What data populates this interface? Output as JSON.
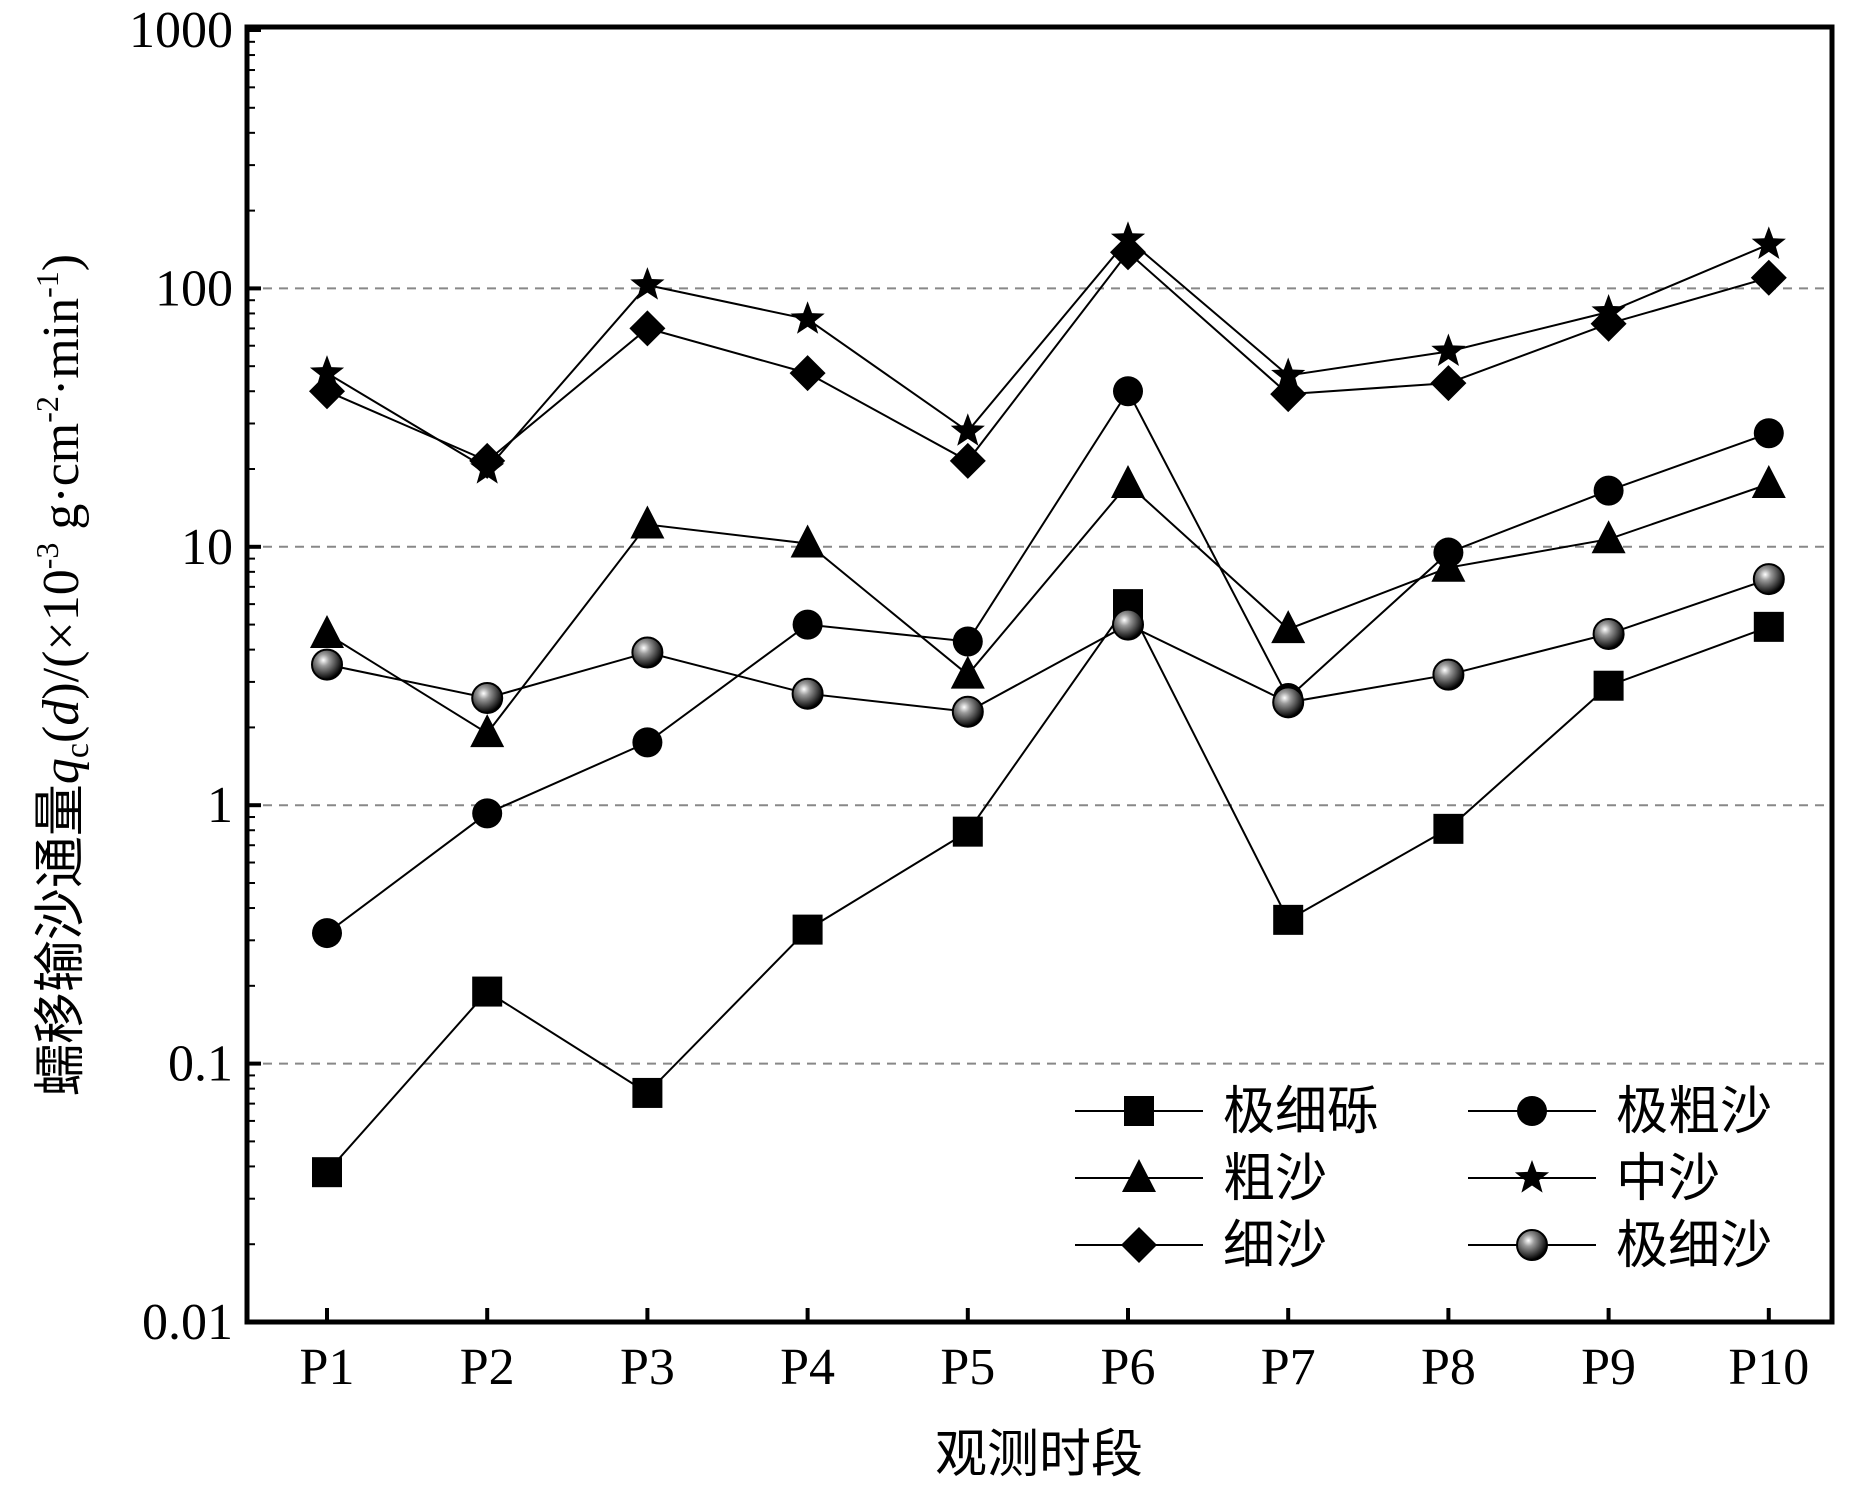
{
  "chart_data": {
    "type": "line",
    "y_scale": "log",
    "ylim": [
      0.01,
      1000
    ],
    "y_ticks": [
      "0.01",
      "0.1",
      "1",
      "10",
      "100",
      "1000"
    ],
    "y_tick_values": [
      0.01,
      0.1,
      1,
      10,
      100,
      1000
    ],
    "grid": "horizontal dashed at 0.1, 1, 10, 100",
    "categories": [
      "P1",
      "P2",
      "P3",
      "P4",
      "P5",
      "P6",
      "P7",
      "P8",
      "P9",
      "P10"
    ],
    "xlabel": "观测时段",
    "ylabel": {
      "prefix": "蠕移输沙通量",
      "q": "q",
      "sub": "c",
      "d_open": "(",
      "d": "d",
      "d_close": ")",
      "unit_a": "/(×10",
      "unit_exp1": "-3",
      "unit_b": " g·cm",
      "unit_exp2": "-2",
      "unit_c": "·min",
      "unit_exp3": "-1",
      "unit_d": ")"
    },
    "legend_position": "bottom-right",
    "series": [
      {
        "name": "极细砾",
        "marker": "square",
        "values": [
          0.038,
          0.19,
          0.077,
          0.33,
          0.79,
          6.0,
          0.36,
          0.81,
          2.9,
          4.9
        ]
      },
      {
        "name": "极粗沙",
        "marker": "circle",
        "values": [
          0.32,
          0.93,
          1.75,
          5.0,
          4.3,
          40,
          2.6,
          9.5,
          16.5,
          27.5
        ]
      },
      {
        "name": "粗沙",
        "marker": "triangle",
        "values": [
          4.6,
          1.9,
          12.2,
          10.3,
          3.2,
          17.5,
          4.8,
          8.3,
          10.7,
          17.5
        ]
      },
      {
        "name": "中沙",
        "marker": "star",
        "values": [
          47,
          20,
          103,
          76,
          28,
          155,
          46,
          57,
          81,
          148
        ]
      },
      {
        "name": "细沙",
        "marker": "diamond",
        "values": [
          40,
          21.5,
          70,
          47,
          21.5,
          138,
          39,
          43,
          73,
          110
        ]
      },
      {
        "name": "极细沙",
        "marker": "shaded-circle",
        "values": [
          3.5,
          2.6,
          3.9,
          2.7,
          2.3,
          5.0,
          2.5,
          3.2,
          4.6,
          7.5
        ]
      }
    ]
  }
}
